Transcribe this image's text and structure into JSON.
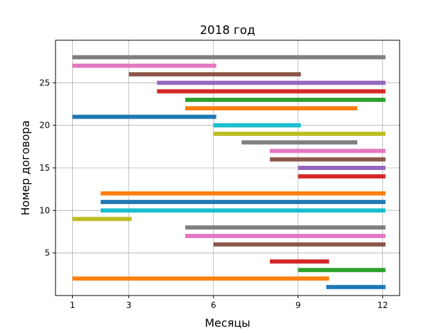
{
  "chart_data": {
    "type": "gantt",
    "title": "2018 год",
    "xlabel": "Месяцы",
    "ylabel": "Номер договора",
    "xlim": [
      0.4,
      12.6
    ],
    "ylim": [
      0,
      30
    ],
    "xticks": [
      1,
      3,
      6,
      9,
      12
    ],
    "yticks": [
      5,
      10,
      15,
      20,
      25
    ],
    "grid": true,
    "bars": [
      {
        "contract": 1,
        "start": 10,
        "end": 12.1,
        "color": "#1f77b4"
      },
      {
        "contract": 2,
        "start": 1,
        "end": 10.1,
        "color": "#ff7f0e"
      },
      {
        "contract": 3,
        "start": 9,
        "end": 12.1,
        "color": "#2ca02c"
      },
      {
        "contract": 4,
        "start": 8,
        "end": 10.1,
        "color": "#d62728"
      },
      {
        "contract": 6,
        "start": 6,
        "end": 12.1,
        "color": "#8c564b"
      },
      {
        "contract": 7,
        "start": 5,
        "end": 12.1,
        "color": "#e377c2"
      },
      {
        "contract": 8,
        "start": 5,
        "end": 12.1,
        "color": "#7f7f7f"
      },
      {
        "contract": 9,
        "start": 1,
        "end": 3.1,
        "color": "#bcbd22"
      },
      {
        "contract": 10,
        "start": 2,
        "end": 12.1,
        "color": "#17becf"
      },
      {
        "contract": 11,
        "start": 2,
        "end": 12.1,
        "color": "#1f77b4"
      },
      {
        "contract": 12,
        "start": 2,
        "end": 12.1,
        "color": "#ff7f0e"
      },
      {
        "contract": 14,
        "start": 9,
        "end": 12.1,
        "color": "#d62728"
      },
      {
        "contract": 15,
        "start": 9,
        "end": 12.1,
        "color": "#9467bd"
      },
      {
        "contract": 16,
        "start": 8,
        "end": 12.1,
        "color": "#8c564b"
      },
      {
        "contract": 17,
        "start": 8,
        "end": 12.1,
        "color": "#e377c2"
      },
      {
        "contract": 18,
        "start": 7,
        "end": 11.1,
        "color": "#7f7f7f"
      },
      {
        "contract": 19,
        "start": 6,
        "end": 12.1,
        "color": "#bcbd22"
      },
      {
        "contract": 20,
        "start": 6,
        "end": 9.1,
        "color": "#17becf"
      },
      {
        "contract": 21,
        "start": 1,
        "end": 6.1,
        "color": "#1f77b4"
      },
      {
        "contract": 22,
        "start": 5,
        "end": 11.1,
        "color": "#ff7f0e"
      },
      {
        "contract": 23,
        "start": 5,
        "end": 12.1,
        "color": "#2ca02c"
      },
      {
        "contract": 24,
        "start": 4,
        "end": 12.1,
        "color": "#d62728"
      },
      {
        "contract": 25,
        "start": 4,
        "end": 12.1,
        "color": "#9467bd"
      },
      {
        "contract": 26,
        "start": 3,
        "end": 9.1,
        "color": "#8c564b"
      },
      {
        "contract": 27,
        "start": 1,
        "end": 6.1,
        "color": "#e377c2"
      },
      {
        "contract": 28,
        "start": 1,
        "end": 12.1,
        "color": "#7f7f7f"
      }
    ]
  }
}
